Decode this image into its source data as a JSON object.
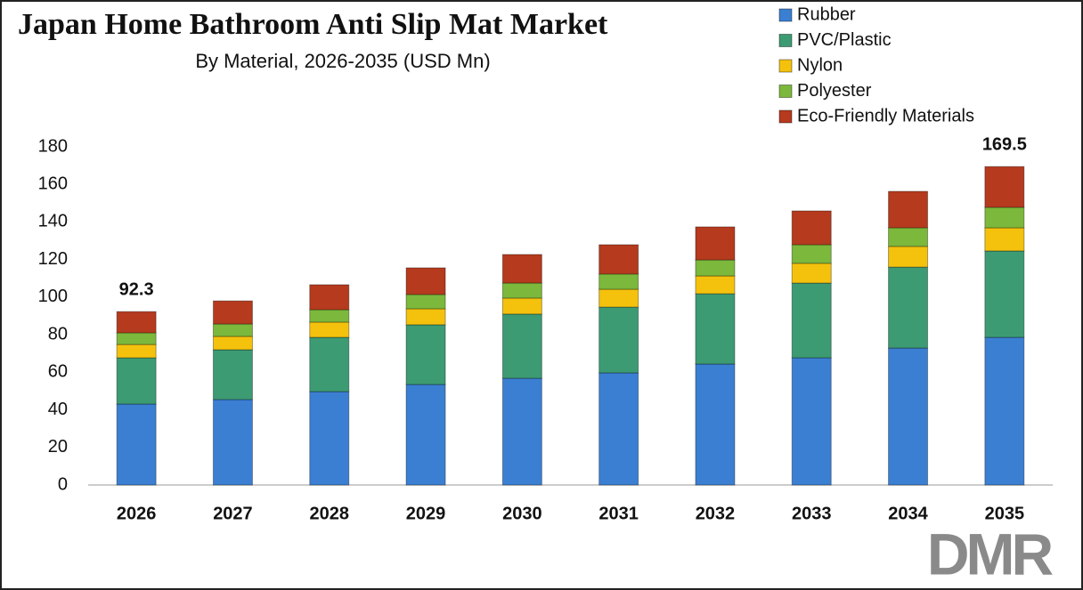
{
  "chart_data": {
    "type": "stacked_bar",
    "title": "Japan Home Bathroom Anti Slip Mat Market",
    "subtitle": "By Material, 2026-2035 (USD Mn)",
    "categories": [
      "2026",
      "2027",
      "2028",
      "2029",
      "2030",
      "2031",
      "2032",
      "2033",
      "2034",
      "2035"
    ],
    "series": [
      {
        "name": "Rubber",
        "color": "#3b7fd2",
        "values": [
          43.1,
          45.5,
          49.7,
          53.5,
          56.8,
          59.7,
          64.4,
          67.7,
          72.9,
          78.6
        ]
      },
      {
        "name": "PVC/Plastic",
        "color": "#3c9b73",
        "values": [
          24.6,
          26.5,
          28.9,
          31.8,
          34.2,
          35.0,
          37.4,
          39.8,
          43.1,
          46.0
        ]
      },
      {
        "name": "Nylon",
        "color": "#f4c20d",
        "values": [
          7.1,
          7.1,
          8.1,
          8.5,
          8.5,
          9.5,
          9.5,
          10.5,
          11.0,
          12.3
        ]
      },
      {
        "name": "Polyester",
        "color": "#7cb83b",
        "values": [
          6.2,
          6.6,
          6.6,
          7.6,
          8.0,
          8.1,
          8.5,
          9.9,
          9.9,
          10.9
        ]
      },
      {
        "name": "Eco-Friendly Materials",
        "color": "#b53a1e",
        "values": [
          11.3,
          12.3,
          13.3,
          14.2,
          15.2,
          15.6,
          17.6,
          18.0,
          19.4,
          21.7
        ]
      }
    ],
    "totals": [
      {
        "category": "2026",
        "value": 92.3
      },
      {
        "category": "2035",
        "value": 169.5
      }
    ],
    "ylim": [
      0,
      180
    ],
    "yticks": [
      0,
      20,
      40,
      60,
      80,
      100,
      120,
      140,
      160,
      180
    ],
    "grid": false,
    "legend": "top-right",
    "logo": "DMR"
  }
}
